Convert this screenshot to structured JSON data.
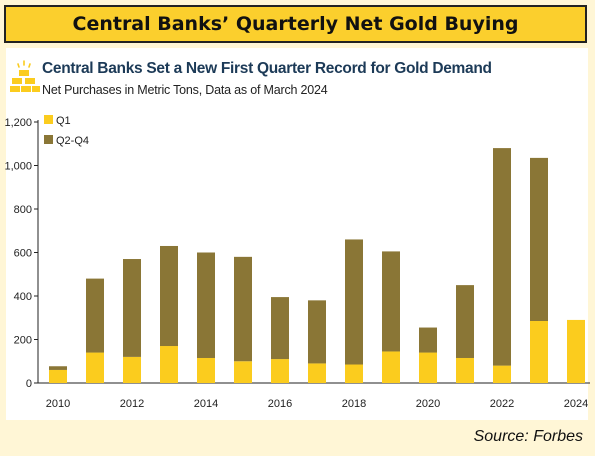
{
  "header": {
    "title": "Central Banks’ Quarterly Net Gold Buying"
  },
  "chart_data": {
    "type": "bar",
    "stacked": true,
    "title": "Central Banks Set a New First Quarter Record for Gold Demand",
    "subtitle": "Net Purchases in Metric Tons, Data as of March 2024",
    "categories": [
      "2010",
      "2011",
      "2012",
      "2013",
      "2014",
      "2015",
      "2016",
      "2017",
      "2018",
      "2019",
      "2020",
      "2021",
      "2022",
      "2023",
      "2024"
    ],
    "x_tick_labels": [
      "2010",
      "2012",
      "2014",
      "2016",
      "2018",
      "2020",
      "2022",
      "2024"
    ],
    "y_ticks": [
      "0",
      "200",
      "400",
      "600",
      "800",
      "1,000",
      "1,200"
    ],
    "ylim": [
      0,
      1200
    ],
    "series": [
      {
        "name": "Q1",
        "color": "#fbcc1e",
        "values": [
          60,
          140,
          120,
          170,
          115,
          100,
          110,
          90,
          85,
          145,
          140,
          115,
          80,
          285,
          290
        ]
      },
      {
        "name": "Q2-Q4",
        "color": "#8a7636",
        "values": [
          17,
          340,
          450,
          460,
          485,
          480,
          285,
          290,
          575,
          460,
          115,
          335,
          1000,
          750,
          0
        ]
      }
    ],
    "legend_position": "top-left",
    "grid": false
  },
  "footer": {
    "source": "Source: Forbes"
  }
}
